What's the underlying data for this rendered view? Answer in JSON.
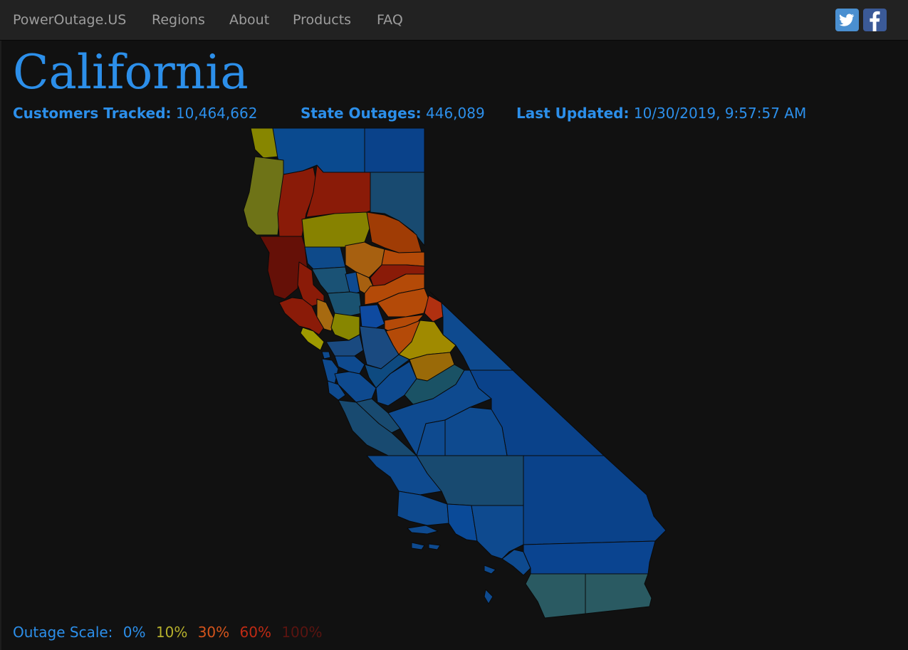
{
  "nav": {
    "brand": "PowerOutage.US",
    "links": [
      "Regions",
      "About",
      "Products",
      "FAQ"
    ],
    "social": [
      "twitter-icon",
      "facebook-icon"
    ]
  },
  "page": {
    "title": "California",
    "stats": {
      "customers_label": "Customers Tracked:",
      "customers_value": "10,464,662",
      "outages_label": "State Outages:",
      "outages_value": "446,089",
      "updated_label": "Last Updated:",
      "updated_value": "10/30/2019, 9:57:57 AM"
    }
  },
  "legend": {
    "label": "Outage Scale:",
    "steps": [
      {
        "text": "0%",
        "color": "#2c8fea"
      },
      {
        "text": "10%",
        "color": "#b6b02c"
      },
      {
        "text": "30%",
        "color": "#d4541c"
      },
      {
        "text": "60%",
        "color": "#bf2a14"
      },
      {
        "text": "100%",
        "color": "#5a1410"
      }
    ]
  },
  "colors": {
    "accent": "#2c8fea",
    "navbar": "#222222",
    "background": "#111111",
    "outline": "#0a0a0a"
  }
}
